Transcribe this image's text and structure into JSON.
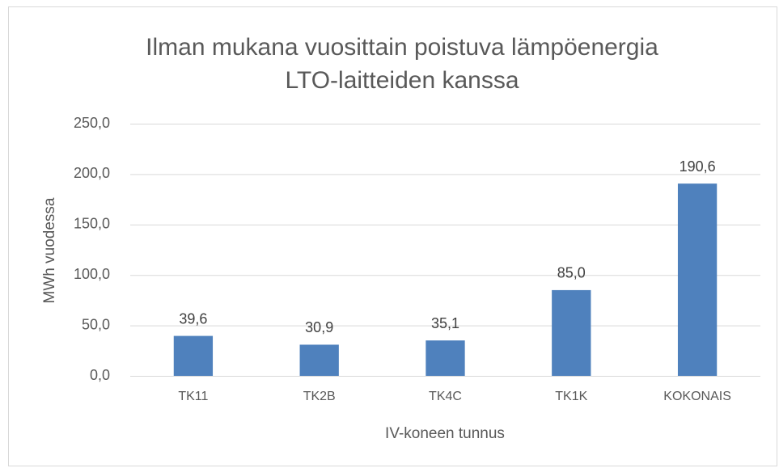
{
  "chart_data": {
    "type": "bar",
    "title": [
      "Ilman mukana vuosittain poistuva lämpöenergia",
      "LTO-laitteiden kanssa"
    ],
    "x_label": "IV-koneen tunnus",
    "y_label": "MWh vuodessa",
    "categories": [
      "TK11",
      "TK2B",
      "TK4C",
      "TK1K",
      "KOKONAIS"
    ],
    "values": [
      39.6,
      30.9,
      35.1,
      85.0,
      190.6
    ],
    "value_labels": [
      "39,6",
      "30,9",
      "35,1",
      "85,0",
      "190,6"
    ],
    "color": "#4f81bd",
    "ylim": [
      0,
      250
    ],
    "yticks": [
      {
        "value": 0,
        "label": "0,0"
      },
      {
        "value": 50,
        "label": "50,0"
      },
      {
        "value": 100,
        "label": "100,0"
      },
      {
        "value": 150,
        "label": "150,0"
      },
      {
        "value": 200,
        "label": "200,0"
      },
      {
        "value": 250,
        "label": "250,0"
      }
    ],
    "grid": true
  }
}
